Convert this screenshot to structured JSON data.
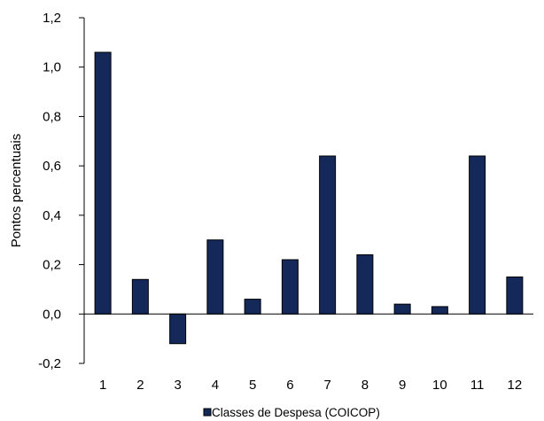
{
  "chart_data": {
    "type": "bar",
    "categories": [
      "1",
      "2",
      "3",
      "4",
      "5",
      "6",
      "7",
      "8",
      "9",
      "10",
      "11",
      "12"
    ],
    "series": [
      {
        "name": "Classes de Despesa (COICOP)",
        "values": [
          1.06,
          0.14,
          -0.12,
          0.3,
          0.06,
          0.22,
          0.64,
          0.24,
          0.04,
          0.03,
          0.64,
          0.15
        ]
      }
    ],
    "ylabel": "Pontos percentuais",
    "xlabel": "",
    "ylim": [
      -0.2,
      1.2
    ],
    "yticks": [
      "-0,2",
      "0,0",
      "0,2",
      "0,4",
      "0,6",
      "0,8",
      "1,0",
      "1,2"
    ],
    "grid": false,
    "legend_position": "bottom-center",
    "colors": {
      "bar_fill": "#14285a",
      "bar_stroke": "#000000",
      "axis": "#000000"
    }
  }
}
